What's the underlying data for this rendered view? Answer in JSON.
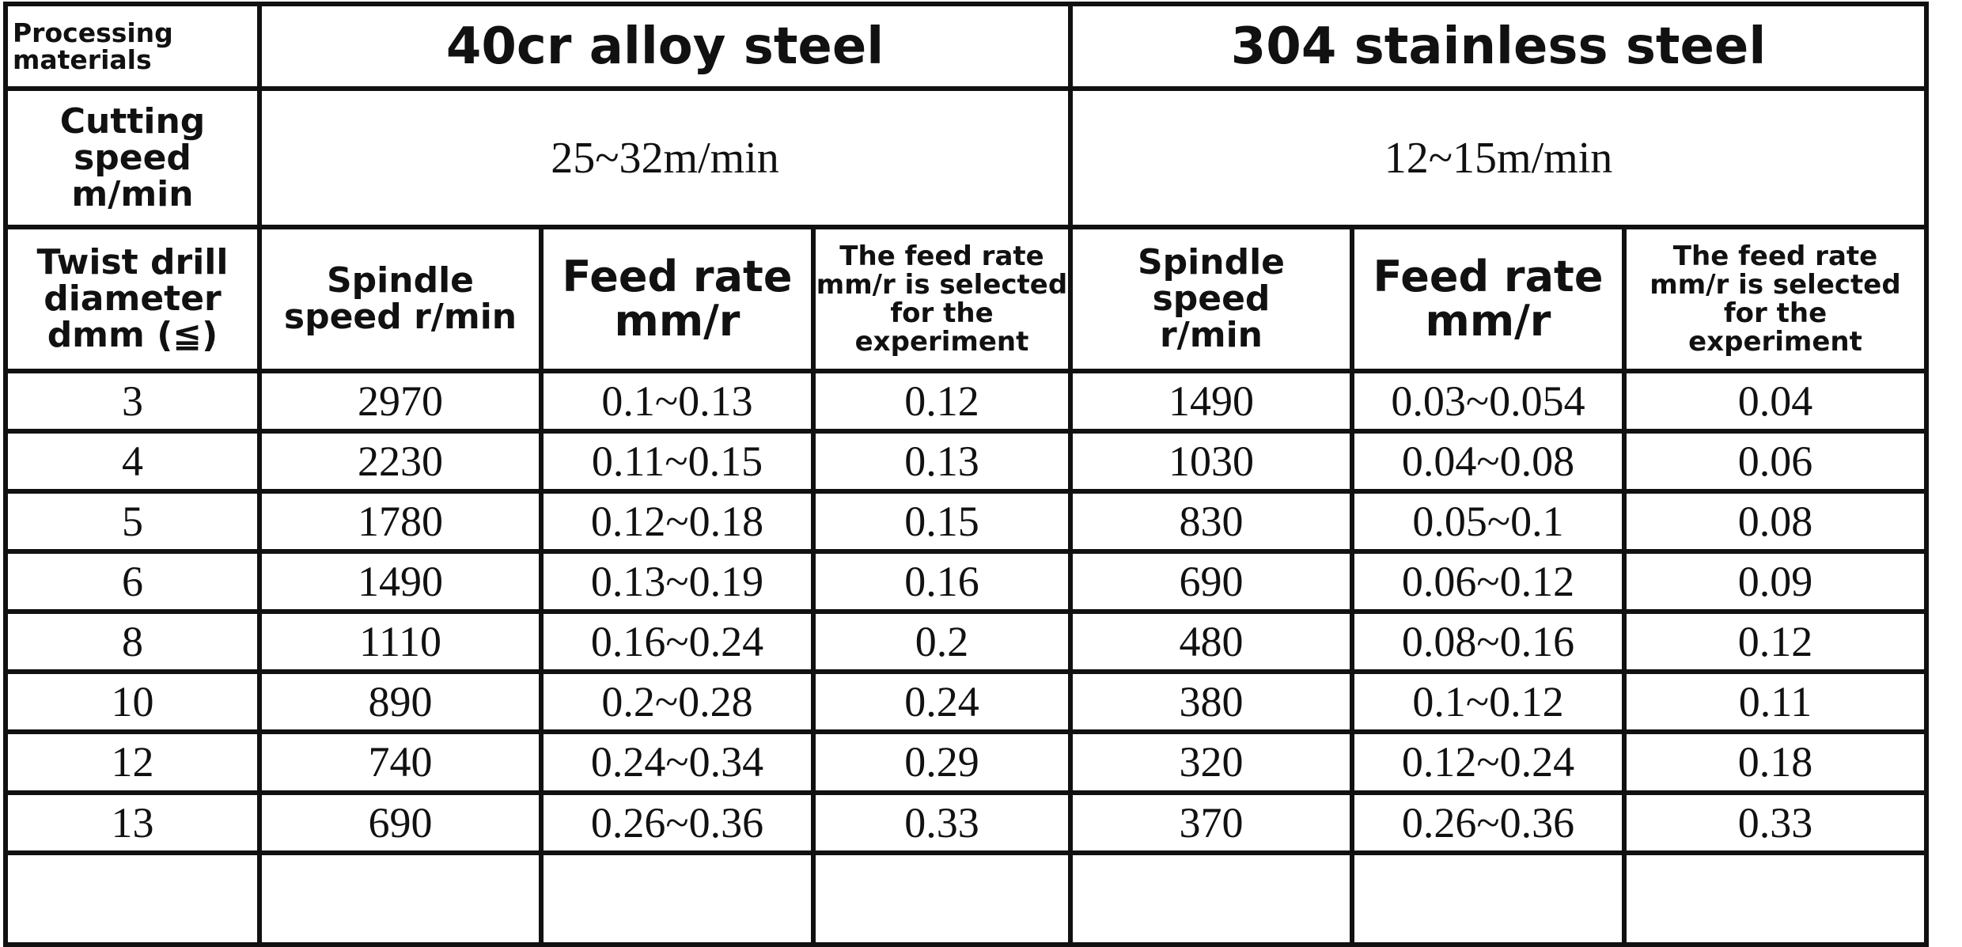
{
  "header": {
    "corner_label": [
      "Processing",
      "materials"
    ],
    "materials": [
      "40cr alloy steel",
      "304 stainless steel"
    ]
  },
  "cutting_speed": {
    "label": [
      "Cutting",
      "speed",
      "m/min"
    ],
    "values": [
      "25~32m/min",
      "12~15m/min"
    ]
  },
  "columns": {
    "diameter": [
      "Twist drill",
      "diameter",
      "dmm (≦)"
    ],
    "alloy": {
      "spindle": [
        "Spindle",
        "speed r/min"
      ],
      "feed_rate": [
        "Feed rate",
        "mm/r"
      ],
      "selected": [
        "The feed rate",
        "mm/r is selected",
        "for the",
        "experiment"
      ]
    },
    "stainless": {
      "spindle": [
        "Spindle",
        "speed",
        "r/min"
      ],
      "feed_rate": [
        "Feed rate",
        "mm/r"
      ],
      "selected": [
        "The feed rate",
        "mm/r is selected",
        "for the",
        "experiment"
      ]
    }
  },
  "rows": [
    [
      "3",
      "2970",
      "0.1~0.13",
      "0.12",
      "1490",
      "0.03~0.054",
      "0.04"
    ],
    [
      "4",
      "2230",
      "0.11~0.15",
      "0.13",
      "1030",
      "0.04~0.08",
      "0.06"
    ],
    [
      "5",
      "1780",
      "0.12~0.18",
      "0.15",
      "830",
      "0.05~0.1",
      "0.08"
    ],
    [
      "6",
      "1490",
      "0.13~0.19",
      "0.16",
      "690",
      "0.06~0.12",
      "0.09"
    ],
    [
      "8",
      "1110",
      "0.16~0.24",
      "0.2",
      "480",
      "0.08~0.16",
      "0.12"
    ],
    [
      "10",
      "890",
      "0.2~0.28",
      "0.24",
      "380",
      "0.1~0.12",
      "0.11"
    ],
    [
      "12",
      "740",
      "0.24~0.34",
      "0.29",
      "320",
      "0.12~0.24",
      "0.18"
    ],
    [
      "13",
      "690",
      "0.26~0.36",
      "0.33",
      "370",
      "0.26~0.36",
      "0.33"
    ],
    [
      "",
      "",
      "",
      "",
      "",
      "",
      ""
    ]
  ]
}
